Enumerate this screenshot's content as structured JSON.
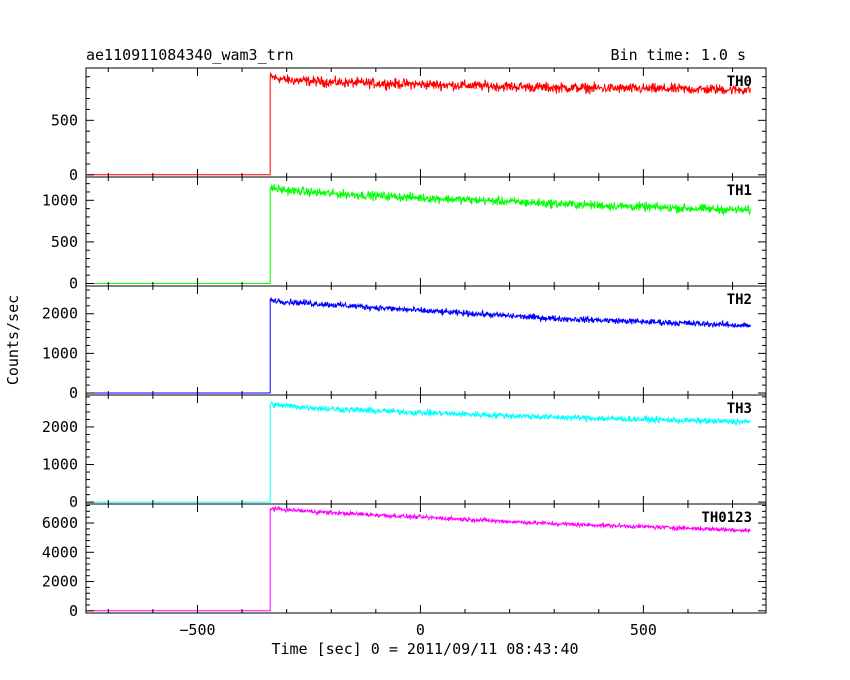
{
  "chart_data": {
    "type": "line",
    "title": "ae110911084340_wam3_trn",
    "subtitle": "Bin time: 1.0 s",
    "xlabel": "Time [sec] 0 = 2011/09/11 08:43:40",
    "ylabel": "Counts/sec",
    "xlim": [
      -750,
      775
    ],
    "x_ticks": [
      -500,
      0,
      500
    ],
    "x_tick_labels": [
      "−500",
      "0",
      "500"
    ],
    "grid": false,
    "trigger_time": -337,
    "data_end_time": 740,
    "series": [
      {
        "name": "TH0",
        "color": "#ff0000",
        "ylim": [
          -20,
          980
        ],
        "y_ticks": [
          0,
          500
        ],
        "pre_level": 0,
        "points": [
          [
            -337,
            900
          ],
          [
            -300,
            870
          ],
          [
            -200,
            850
          ],
          [
            0,
            830
          ],
          [
            300,
            800
          ],
          [
            500,
            790
          ],
          [
            740,
            780
          ]
        ],
        "noise": 40
      },
      {
        "name": "TH1",
        "color": "#00ff00",
        "ylim": [
          -30,
          1280
        ],
        "y_ticks": [
          0,
          500,
          1000
        ],
        "pre_level": 0,
        "points": [
          [
            -337,
            1150
          ],
          [
            -300,
            1120
          ],
          [
            -200,
            1080
          ],
          [
            0,
            1030
          ],
          [
            300,
            960
          ],
          [
            500,
            920
          ],
          [
            740,
            880
          ]
        ],
        "noise": 45
      },
      {
        "name": "TH2",
        "color": "#0000ff",
        "ylim": [
          -50,
          2700
        ],
        "y_ticks": [
          0,
          1000,
          2000
        ],
        "pre_level": 0,
        "points": [
          [
            -337,
            2350
          ],
          [
            -300,
            2300
          ],
          [
            -200,
            2230
          ],
          [
            0,
            2080
          ],
          [
            300,
            1880
          ],
          [
            500,
            1800
          ],
          [
            740,
            1700
          ]
        ],
        "noise": 65
      },
      {
        "name": "TH3",
        "color": "#00ffff",
        "ylim": [
          -50,
          2850
        ],
        "y_ticks": [
          0,
          1000,
          2000
        ],
        "pre_level": 0,
        "points": [
          [
            -337,
            2600
          ],
          [
            -300,
            2560
          ],
          [
            -200,
            2480
          ],
          [
            0,
            2380
          ],
          [
            300,
            2260
          ],
          [
            500,
            2200
          ],
          [
            740,
            2130
          ]
        ],
        "noise": 70
      },
      {
        "name": "TH0123",
        "color": "#ff00ff",
        "ylim": [
          -150,
          7300
        ],
        "y_ticks": [
          0,
          2000,
          4000,
          6000
        ],
        "pre_level": 0,
        "points": [
          [
            -337,
            7000
          ],
          [
            -300,
            6900
          ],
          [
            -200,
            6700
          ],
          [
            0,
            6400
          ],
          [
            300,
            5950
          ],
          [
            500,
            5750
          ],
          [
            740,
            5500
          ]
        ],
        "noise": 120
      }
    ]
  }
}
